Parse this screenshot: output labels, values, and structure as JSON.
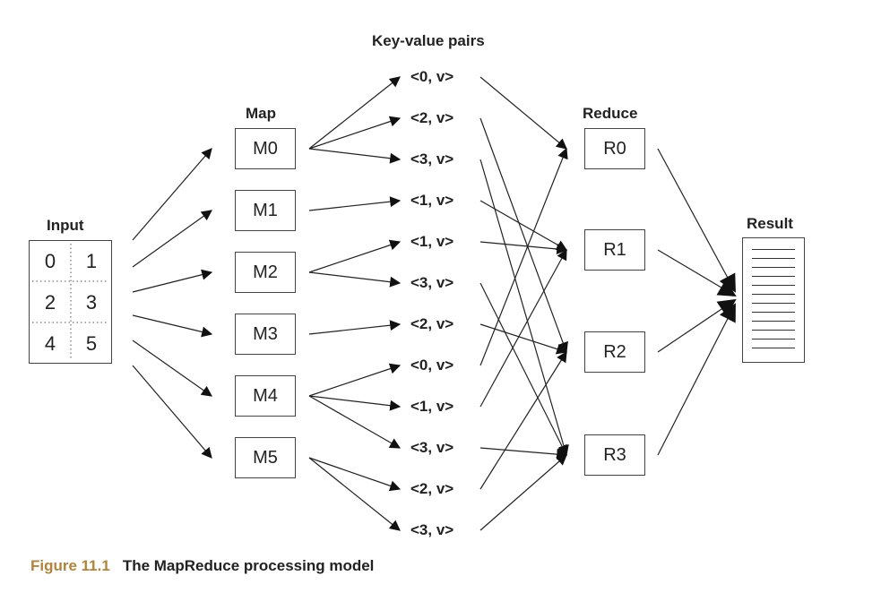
{
  "headers": {
    "input": "Input",
    "map": "Map",
    "kv": "Key-value pairs",
    "reduce": "Reduce",
    "result": "Result"
  },
  "input_cells": [
    "0",
    "1",
    "2",
    "3",
    "4",
    "5"
  ],
  "mappers": [
    "M0",
    "M1",
    "M2",
    "M3",
    "M4",
    "M5"
  ],
  "kv_pairs": [
    "<0, v>",
    "<2, v>",
    "<3, v>",
    "<1, v>",
    "<1, v>",
    "<3, v>",
    "<2, v>",
    "<0, v>",
    "<1, v>",
    "<3, v>",
    "<2, v>",
    "<3, v>"
  ],
  "reducers": [
    "R0",
    "R1",
    "R2",
    "R3"
  ],
  "caption": {
    "number": "Figure 11.1",
    "text": "The MapReduce processing model"
  },
  "edges": {
    "map_to_kv": [
      [
        0,
        0
      ],
      [
        0,
        1
      ],
      [
        0,
        2
      ],
      [
        1,
        3
      ],
      [
        2,
        4
      ],
      [
        2,
        5
      ],
      [
        3,
        6
      ],
      [
        4,
        7
      ],
      [
        4,
        8
      ],
      [
        4,
        9
      ],
      [
        5,
        10
      ],
      [
        5,
        11
      ]
    ],
    "kv_to_reduce": [
      [
        0,
        0
      ],
      [
        1,
        2
      ],
      [
        2,
        3
      ],
      [
        3,
        1
      ],
      [
        4,
        1
      ],
      [
        5,
        3
      ],
      [
        6,
        2
      ],
      [
        7,
        0
      ],
      [
        8,
        1
      ],
      [
        9,
        3
      ],
      [
        10,
        2
      ],
      [
        11,
        3
      ]
    ]
  },
  "colors": {
    "caption_number": "#b5823a",
    "line": "#222222"
  }
}
